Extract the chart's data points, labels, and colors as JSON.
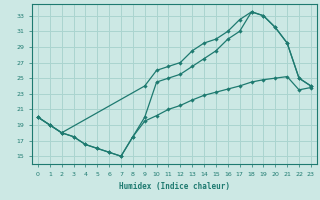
{
  "bg_color": "#cce8e4",
  "grid_color": "#aad4cf",
  "line_color": "#1e7a70",
  "xlabel": "Humidex (Indice chaleur)",
  "xlim": [
    -0.5,
    23.5
  ],
  "ylim": [
    14,
    34.5
  ],
  "xticks": [
    0,
    1,
    2,
    3,
    4,
    5,
    6,
    7,
    8,
    9,
    10,
    11,
    12,
    13,
    14,
    15,
    16,
    17,
    18,
    19,
    20,
    21,
    22,
    23
  ],
  "yticks": [
    15,
    17,
    19,
    21,
    23,
    25,
    27,
    29,
    31,
    33
  ],
  "line1_x": [
    0,
    1,
    2,
    9,
    10,
    11,
    12,
    13,
    14,
    15,
    16,
    17,
    18,
    19,
    20,
    21,
    22,
    23
  ],
  "line1_y": [
    20.0,
    19.0,
    18.0,
    24.0,
    26.0,
    26.5,
    27.0,
    28.5,
    29.5,
    30.0,
    31.0,
    32.5,
    33.5,
    33.0,
    31.5,
    29.5,
    25.0,
    24.0
  ],
  "line2_x": [
    0,
    1,
    2,
    3,
    4,
    5,
    6,
    7,
    8,
    9,
    10,
    11,
    12,
    13,
    14,
    15,
    16,
    17,
    18,
    19,
    20,
    21,
    22,
    23
  ],
  "line2_y": [
    20.0,
    19.0,
    18.0,
    17.5,
    16.5,
    16.0,
    15.5,
    15.0,
    17.5,
    20.0,
    24.5,
    25.0,
    25.5,
    26.5,
    27.5,
    28.5,
    30.0,
    31.0,
    33.5,
    33.0,
    31.5,
    29.5,
    25.0,
    24.0
  ],
  "line3_x": [
    0,
    1,
    2,
    3,
    4,
    5,
    6,
    7,
    8,
    9,
    10,
    11,
    12,
    13,
    14,
    15,
    16,
    17,
    18,
    19,
    20,
    21,
    22,
    23
  ],
  "line3_y": [
    20.0,
    19.0,
    18.0,
    17.5,
    16.5,
    16.0,
    15.5,
    15.0,
    17.5,
    19.5,
    20.2,
    21.0,
    21.5,
    22.2,
    22.8,
    23.2,
    23.6,
    24.0,
    24.5,
    24.8,
    25.0,
    25.2,
    23.5,
    23.8
  ]
}
